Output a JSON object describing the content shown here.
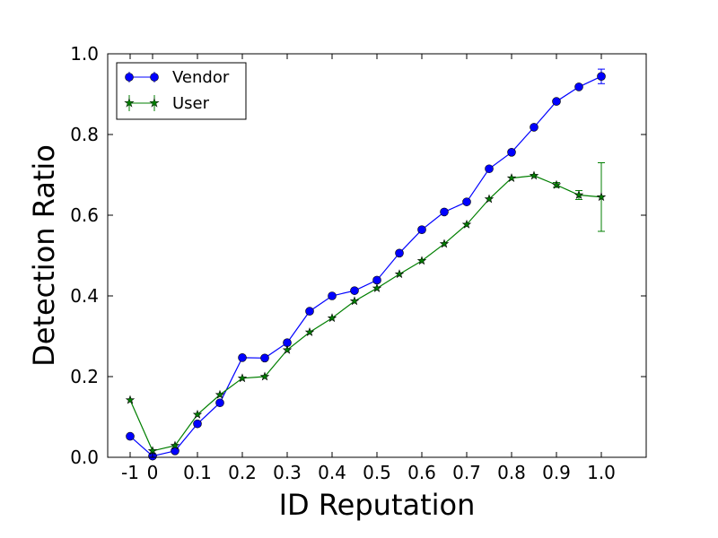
{
  "chart_data": {
    "type": "line",
    "xlabel": "ID Reputation",
    "ylabel": "Detection Ratio",
    "categories": [
      "-1",
      "0",
      "0.05",
      "0.1",
      "0.15",
      "0.2",
      "0.25",
      "0.3",
      "0.35",
      "0.4",
      "0.45",
      "0.5",
      "0.55",
      "0.6",
      "0.65",
      "0.7",
      "0.75",
      "0.8",
      "0.85",
      "0.9",
      "0.95",
      "1.0"
    ],
    "x_tick_labels": [
      "-1",
      "0",
      "0.1",
      "0.2",
      "0.3",
      "0.4",
      "0.5",
      "0.6",
      "0.7",
      "0.8",
      "0.9",
      "1.0"
    ],
    "y_tick_labels": [
      "0.0",
      "0.2",
      "0.4",
      "0.6",
      "0.8",
      "1.0"
    ],
    "ylim": [
      0,
      1
    ],
    "legend_position": "top-left",
    "grid": false,
    "series": [
      {
        "name": "Vendor",
        "color": "#0000ff",
        "marker": "circle",
        "values": [
          0.052,
          0.003,
          0.016,
          0.083,
          0.135,
          0.247,
          0.246,
          0.284,
          0.362,
          0.4,
          0.413,
          0.439,
          0.506,
          0.564,
          0.608,
          0.633,
          0.715,
          0.756,
          0.818,
          0.882,
          0.918,
          0.944
        ],
        "error": [
          0,
          0,
          0,
          0,
          0,
          0,
          0,
          0,
          0,
          0,
          0,
          0,
          0,
          0,
          0,
          0,
          0,
          0,
          0,
          0,
          0,
          0.018
        ]
      },
      {
        "name": "User",
        "color": "#007f00",
        "marker": "star",
        "values": [
          0.142,
          0.016,
          0.029,
          0.106,
          0.155,
          0.196,
          0.2,
          0.266,
          0.31,
          0.345,
          0.387,
          0.419,
          0.454,
          0.487,
          0.529,
          0.577,
          0.64,
          0.692,
          0.698,
          0.675,
          0.65,
          0.645
        ],
        "error": [
          0,
          0,
          0,
          0,
          0,
          0,
          0,
          0,
          0,
          0,
          0,
          0,
          0,
          0,
          0,
          0,
          0,
          0,
          0,
          0.006,
          0.011,
          0.085
        ]
      }
    ]
  }
}
